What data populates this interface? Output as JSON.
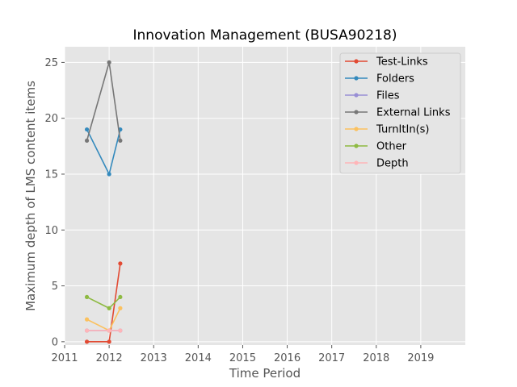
{
  "chart_data": {
    "type": "line",
    "title": "Innovation Management (BUSA90218)",
    "xlabel": "Time Period",
    "ylabel": "Maximum depth of LMS content items",
    "xlim": [
      2011.0,
      2020.0
    ],
    "ylim": [
      -0.3,
      26.4
    ],
    "xticks": [
      2011,
      2012,
      2013,
      2014,
      2015,
      2016,
      2017,
      2018,
      2019
    ],
    "xtick_labels": [
      "2011",
      "2012",
      "2013",
      "2014",
      "2015",
      "2016",
      "2017",
      "2018",
      "2019"
    ],
    "yticks": [
      0,
      5,
      10,
      15,
      20,
      25
    ],
    "ytick_labels": [
      "0",
      "5",
      "10",
      "15",
      "20",
      "25"
    ],
    "grid": true,
    "legend_position": "top-right",
    "x": [
      2011.5,
      2012.0,
      2012.25
    ],
    "series": [
      {
        "name": "Test-Links",
        "color": "#E24A33",
        "values": [
          0,
          0,
          7
        ]
      },
      {
        "name": "Folders",
        "color": "#348ABD",
        "values": [
          19,
          15,
          19
        ]
      },
      {
        "name": "Files",
        "color": "#988ED5",
        "values": [
          1,
          1,
          1
        ]
      },
      {
        "name": "External Links",
        "color": "#777777",
        "values": [
          18,
          25,
          18
        ]
      },
      {
        "name": "TurnItIn(s)",
        "color": "#FBC15E",
        "values": [
          2,
          1,
          3
        ]
      },
      {
        "name": "Other",
        "color": "#8EBA42",
        "values": [
          4,
          3,
          4
        ]
      },
      {
        "name": "Depth",
        "color": "#FFB5B8",
        "values": [
          1,
          1,
          1
        ]
      }
    ]
  }
}
